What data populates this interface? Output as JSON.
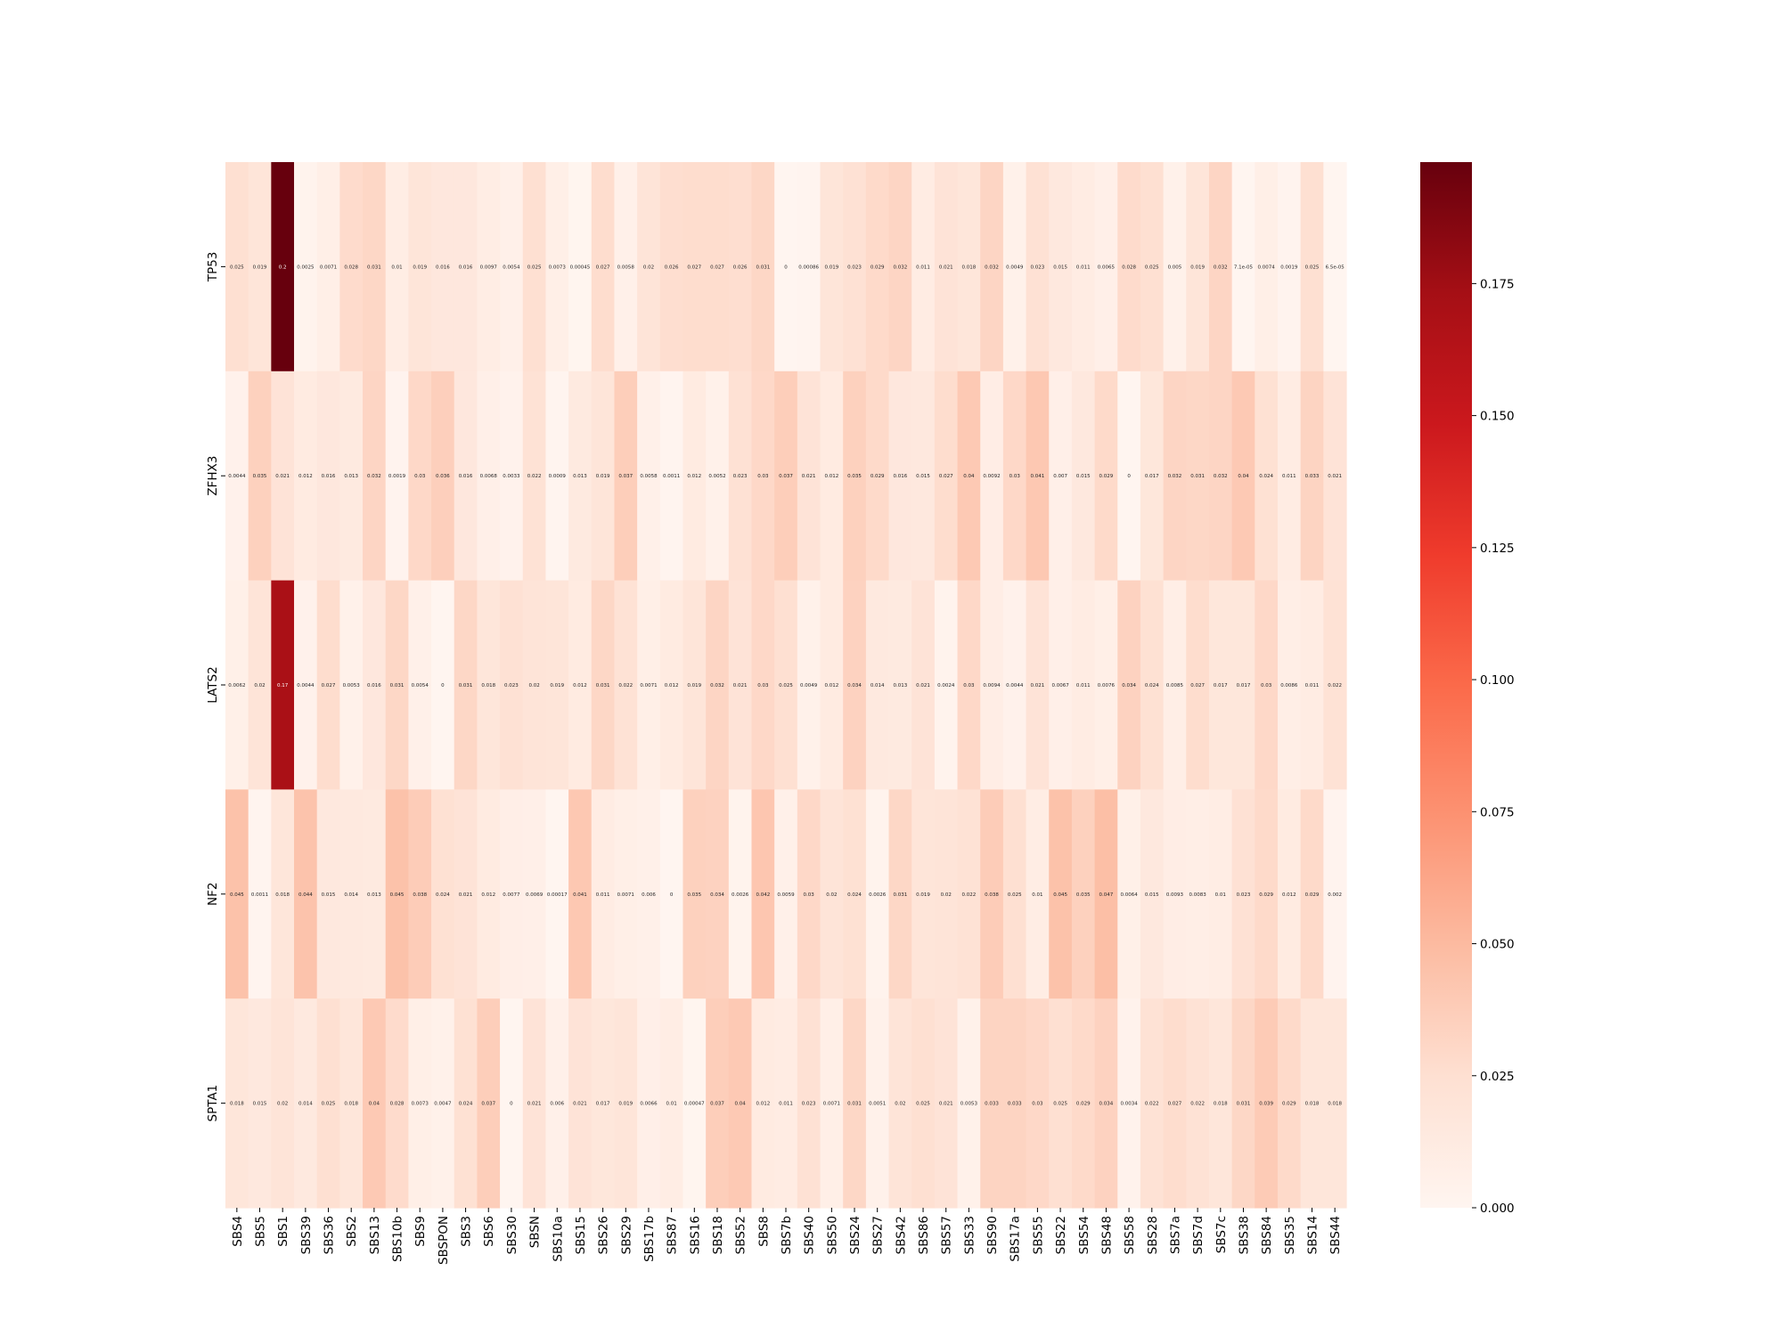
{
  "chart_data": {
    "type": "heatmap",
    "colormap": "Reds",
    "rows": [
      "TP53",
      "ZFHX3",
      "LATS2",
      "NF2",
      "SPTA1"
    ],
    "columns": [
      "SBS4",
      "SBS5",
      "SBS1",
      "SBS39",
      "SBS36",
      "SBS2",
      "SBS13",
      "SBS10b",
      "SBS9",
      "SBSPON",
      "SBS3",
      "SBS6",
      "SBS30",
      "SBSN",
      "SBS10a",
      "SBS15",
      "SBS26",
      "SBS29",
      "SBS17b",
      "SBS87",
      "SBS16",
      "SBS18",
      "SBS52",
      "SBS8",
      "SBS7b",
      "SBS40",
      "SBS50",
      "SBS24",
      "SBS27",
      "SBS42",
      "SBS86",
      "SBS57",
      "SBS33",
      "SBS90",
      "SBS17a",
      "SBS55",
      "SBS22",
      "SBS54",
      "SBS48",
      "SBS58",
      "SBS28",
      "SBS7a",
      "SBS7d",
      "SBS7c",
      "SBS38",
      "SBS84",
      "SBS35",
      "SBS14",
      "SBS44"
    ],
    "values": [
      [
        0.025,
        0.019,
        0.2,
        0.0025,
        0.0071,
        0.028,
        0.031,
        0.01,
        0.019,
        0.016,
        0.016,
        0.0097,
        0.0054,
        0.025,
        0.0073,
        0.00045,
        0.027,
        0.0058,
        0.02,
        0.026,
        0.027,
        0.027,
        0.026,
        0.031,
        0,
        0.00086,
        0.019,
        0.023,
        0.029,
        0.032,
        0.011,
        0.021,
        0.018,
        0.032,
        0.0049,
        0.023,
        0.015,
        0.011,
        0.0065,
        0.028,
        0.025,
        0.005,
        0.019,
        0.032,
        7.1e-05,
        0.0074,
        0.0019,
        0.025,
        6.5e-05
      ],
      [
        0.0044,
        0.035,
        0.021,
        0.012,
        0.016,
        0.013,
        0.032,
        0.0019,
        0.03,
        0.036,
        0.016,
        0.0068,
        0.0033,
        0.022,
        0.0009,
        0.013,
        0.019,
        0.037,
        0.0058,
        0.0011,
        0.012,
        0.0052,
        0.023,
        0.03,
        0.037,
        0.021,
        0.012,
        0.035,
        0.029,
        0.016,
        0.015,
        0.027,
        0.04,
        0.0092,
        0.03,
        0.041,
        0.007,
        0.015,
        0.029,
        0,
        0.017,
        0.032,
        0.031,
        0.032,
        0.04,
        0.024,
        0.011,
        0.033,
        0.021
      ],
      [
        0.0062,
        0.02,
        0.17,
        0.0044,
        0.027,
        0.0053,
        0.016,
        0.031,
        0.0054,
        0,
        0.031,
        0.018,
        0.023,
        0.02,
        0.019,
        0.012,
        0.031,
        0.022,
        0.0071,
        0.012,
        0.019,
        0.032,
        0.021,
        0.03,
        0.025,
        0.0049,
        0.012,
        0.034,
        0.014,
        0.013,
        0.021,
        0.0024,
        0.03,
        0.0094,
        0.0044,
        0.021,
        0.0067,
        0.011,
        0.0076,
        0.034,
        0.024,
        0.0085,
        0.027,
        0.017,
        0.017,
        0.03,
        0.0086,
        0.011,
        0.022
      ],
      [
        0.045,
        0.0011,
        0.018,
        0.044,
        0.015,
        0.014,
        0.013,
        0.045,
        0.038,
        0.024,
        0.021,
        0.012,
        0.0077,
        0.0069,
        0.00017,
        0.041,
        0.011,
        0.0071,
        0.006,
        0,
        0.035,
        0.034,
        0.0026,
        0.042,
        0.0059,
        0.03,
        0.02,
        0.024,
        0.0026,
        0.031,
        0.019,
        0.02,
        0.022,
        0.038,
        0.025,
        0.01,
        0.045,
        0.035,
        0.047,
        0.0064,
        0.015,
        0.0093,
        0.0083,
        0.01,
        0.023,
        0.029,
        0.012,
        0.029,
        0.002
      ],
      [
        0.018,
        0.015,
        0.02,
        0.014,
        0.025,
        0.018,
        0.04,
        0.028,
        0.0073,
        0.0047,
        0.024,
        0.037,
        0,
        0.021,
        0.006,
        0.021,
        0.017,
        0.019,
        0.0066,
        0.01,
        0.00047,
        0.037,
        0.04,
        0.012,
        0.011,
        0.023,
        0.0071,
        0.031,
        0.0051,
        0.02,
        0.025,
        0.021,
        0.0053,
        0.033,
        0.033,
        0.03,
        0.025,
        0.029,
        0.034,
        0.0034,
        0.022,
        0.027,
        0.022,
        0.018,
        0.031,
        0.039,
        0.029,
        0.018,
        0.018
      ]
    ],
    "cell_labels": [
      [
        "0.025",
        "0.019",
        "0.2",
        "0.0025",
        "0.0071",
        "0.028",
        "0.031",
        "0.01",
        "0.019",
        "0.016",
        "0.016",
        "0.0097",
        "0.0054",
        "0.025",
        "0.0073",
        "0.00045",
        "0.027",
        "0.0058",
        "0.02",
        "0.026",
        "0.027",
        "0.027",
        "0.026",
        "0.031",
        "0",
        "0.00086",
        "0.019",
        "0.023",
        "0.029",
        "0.032",
        "0.011",
        "0.021",
        "0.018",
        "0.032",
        "0.0049",
        "0.023",
        "0.015",
        "0.011",
        "0.0065",
        "0.028",
        "0.025",
        "0.005",
        "0.019",
        "0.032",
        "7.1e-05",
        "0.0074",
        "0.0019",
        "0.025",
        "6.5e-05"
      ],
      [
        "0.0044",
        "0.035",
        "0.021",
        "0.012",
        "0.016",
        "0.013",
        "0.032",
        "0.0019",
        "0.03",
        "0.036",
        "0.016",
        "0.0068",
        "0.0033",
        "0.022",
        "0.0009",
        "0.013",
        "0.019",
        "0.037",
        "0.0058",
        "0.0011",
        "0.012",
        "0.0052",
        "0.023",
        "0.03",
        "0.037",
        "0.021",
        "0.012",
        "0.035",
        "0.029",
        "0.016",
        "0.015",
        "0.027",
        "0.04",
        "0.0092",
        "0.03",
        "0.041",
        "0.007",
        "0.015",
        "0.029",
        "0",
        "0.017",
        "0.032",
        "0.031",
        "0.032",
        "0.04",
        "0.024",
        "0.011",
        "0.033",
        "0.021"
      ],
      [
        "0.0062",
        "0.02",
        "0.17",
        "0.0044",
        "0.027",
        "0.0053",
        "0.016",
        "0.031",
        "0.0054",
        "0",
        "0.031",
        "0.018",
        "0.023",
        "0.02",
        "0.019",
        "0.012",
        "0.031",
        "0.022",
        "0.0071",
        "0.012",
        "0.019",
        "0.032",
        "0.021",
        "0.03",
        "0.025",
        "0.0049",
        "0.012",
        "0.034",
        "0.014",
        "0.013",
        "0.021",
        "0.0024",
        "0.03",
        "0.0094",
        "0.0044",
        "0.021",
        "0.0067",
        "0.011",
        "0.0076",
        "0.034",
        "0.024",
        "0.0085",
        "0.027",
        "0.017",
        "0.017",
        "0.03",
        "0.0086",
        "0.011",
        "0.022"
      ],
      [
        "0.045",
        "0.0011",
        "0.018",
        "0.044",
        "0.015",
        "0.014",
        "0.013",
        "0.045",
        "0.038",
        "0.024",
        "0.021",
        "0.012",
        "0.0077",
        "0.0069",
        "0.00017",
        "0.041",
        "0.011",
        "0.0071",
        "0.006",
        "0",
        "0.035",
        "0.034",
        "0.0026",
        "0.042",
        "0.0059",
        "0.03",
        "0.02",
        "0.024",
        "0.0026",
        "0.031",
        "0.019",
        "0.02",
        "0.022",
        "0.038",
        "0.025",
        "0.01",
        "0.045",
        "0.035",
        "0.047",
        "0.0064",
        "0.015",
        "0.0093",
        "0.0083",
        "0.01",
        "0.023",
        "0.029",
        "0.012",
        "0.029",
        "0.002"
      ],
      [
        "0.018",
        "0.015",
        "0.02",
        "0.014",
        "0.025",
        "0.018",
        "0.04",
        "0.028",
        "0.0073",
        "0.0047",
        "0.024",
        "0.037",
        "0",
        "0.021",
        "0.006",
        "0.021",
        "0.017",
        "0.019",
        "0.0066",
        "0.01",
        "0.00047",
        "0.037",
        "0.04",
        "0.012",
        "0.011",
        "0.023",
        "0.0071",
        "0.031",
        "0.0051",
        "0.02",
        "0.025",
        "0.021",
        "0.0053",
        "0.033",
        "0.033",
        "0.03",
        "0.025",
        "0.029",
        "0.034",
        "0.0034",
        "0.022",
        "0.027",
        "0.022",
        "0.018",
        "0.031",
        "0.039",
        "0.029",
        "0.018",
        "0.018"
      ]
    ],
    "colorbar": {
      "vmin": 0,
      "vmax": 0.198,
      "ticks": [
        0,
        0.025,
        0.05,
        0.075,
        0.1,
        0.125,
        0.15,
        0.175
      ],
      "tick_labels": [
        "0.000",
        "0.025",
        "0.050",
        "0.075",
        "0.100",
        "0.125",
        "0.150",
        "0.175"
      ]
    },
    "title": "",
    "xlabel": "",
    "ylabel": ""
  }
}
